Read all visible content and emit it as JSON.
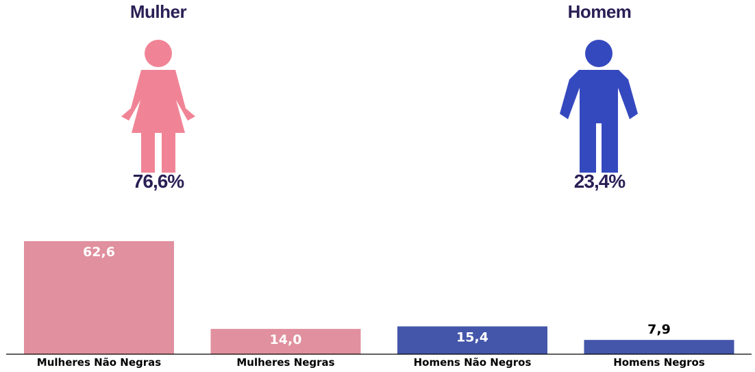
{
  "genders": [
    {
      "title": "Mulher",
      "percent": "76,6%",
      "icon": "female-person-icon",
      "color": "#f08496"
    },
    {
      "title": "Homem",
      "percent": "23,4%",
      "icon": "male-person-icon",
      "color": "#3549bf"
    }
  ],
  "chart_data": {
    "type": "bar",
    "categories": [
      "Mulheres Não Negras",
      "Mulheres Negras",
      "Homens Não Negros",
      "Homens Negros"
    ],
    "values": [
      62.6,
      14.0,
      15.4,
      7.9
    ],
    "value_labels": [
      "62,6",
      "14,0",
      "15,4",
      "7,9"
    ],
    "colors": [
      "#e0909e",
      "#e0909e",
      "#4456aa",
      "#4456aa"
    ],
    "ylim": [
      0,
      62.6
    ],
    "grid": false,
    "title": "",
    "xlabel": "",
    "ylabel": ""
  }
}
